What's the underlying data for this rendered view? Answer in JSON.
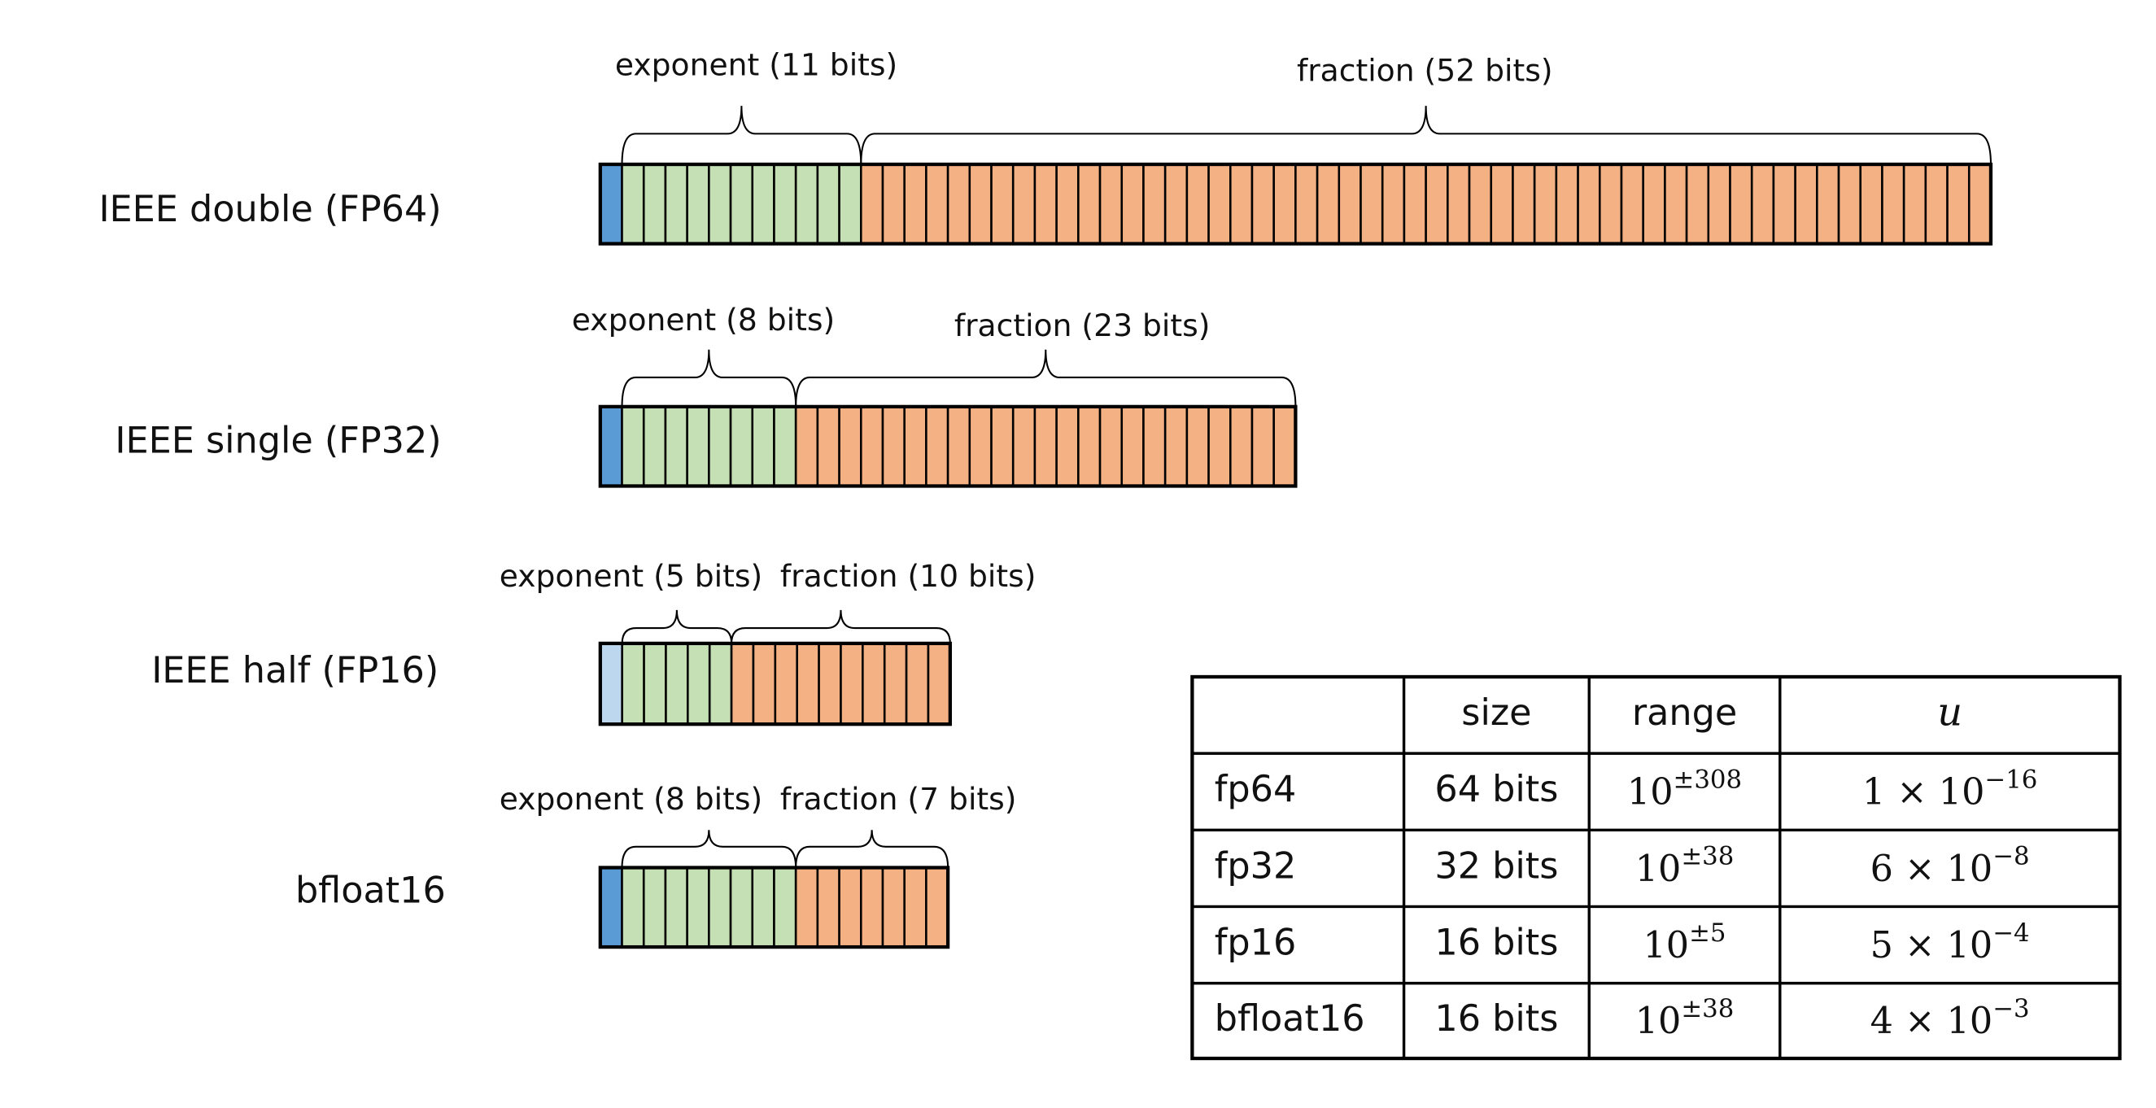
{
  "formats": [
    {
      "label": "IEEE double (FP64)",
      "exponent_label": "exponent (11 bits)",
      "fraction_label": "fraction (52 bits)",
      "exponent_bits": 11,
      "fraction_bits": 52
    },
    {
      "label": "IEEE single (FP32)",
      "exponent_label": "exponent (8 bits)",
      "fraction_label": "fraction (23 bits)",
      "exponent_bits": 8,
      "fraction_bits": 23
    },
    {
      "label": "IEEE half (FP16)",
      "exponent_label": "exponent (5 bits)",
      "fraction_label": "fraction (10 bits)",
      "exponent_bits": 5,
      "fraction_bits": 10
    },
    {
      "label": "bfloat16",
      "exponent_label": "exponent (8 bits)",
      "fraction_label": "fraction (7 bits)",
      "exponent_bits": 8,
      "fraction_bits": 7
    }
  ],
  "table": {
    "header": [
      "size",
      "range",
      "u"
    ],
    "rows": [
      {
        "name": "fp64",
        "size": "64 bits",
        "range": {
          "base": "10",
          "exp": "±308"
        },
        "u": {
          "mantissa": "1 × 10",
          "exp": "−16"
        }
      },
      {
        "name": "fp32",
        "size": "32 bits",
        "range": {
          "base": "10",
          "exp": "±38"
        },
        "u": {
          "mantissa": "6 × 10",
          "exp": "−8"
        }
      },
      {
        "name": "fp16",
        "size": "16 bits",
        "range": {
          "base": "10",
          "exp": "±5"
        },
        "u": {
          "mantissa": "5 × 10",
          "exp": "−4"
        }
      },
      {
        "name": "bfloat16",
        "size": "16 bits",
        "range": {
          "base": "10",
          "exp": "±38"
        },
        "u": {
          "mantissa": "4 × 10",
          "exp": "−3"
        }
      }
    ]
  }
}
